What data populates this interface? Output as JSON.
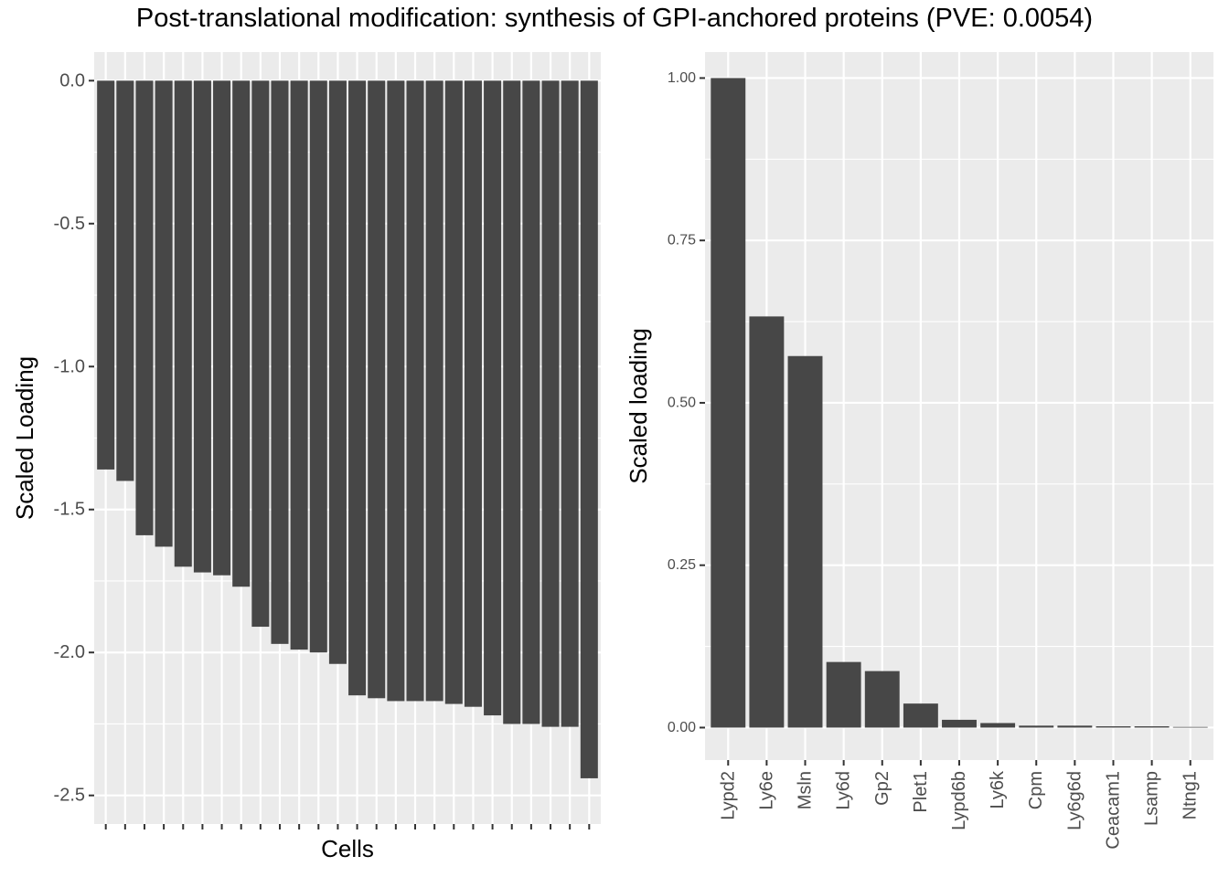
{
  "title": "Post-translational modification: synthesis of GPI-anchored proteins (PVE: 0.0054)",
  "chart_data": [
    {
      "type": "bar",
      "xlabel": "Cells",
      "ylabel": "Scaled Loading",
      "ylim": [
        -2.6,
        0.1
      ],
      "y_ticks": [
        0.0,
        -0.5,
        -1.0,
        -1.5,
        -2.0,
        -2.5
      ],
      "y_tick_labels": [
        "0.0",
        "-0.5",
        "-1.0",
        "-1.5",
        "-2.0",
        "-2.5"
      ],
      "grid": true,
      "values": [
        -1.36,
        -1.4,
        -1.59,
        -1.63,
        -1.7,
        -1.72,
        -1.73,
        -1.77,
        -1.91,
        -1.97,
        -1.99,
        -2.0,
        -2.04,
        -2.15,
        -2.16,
        -2.17,
        -2.17,
        -2.17,
        -2.18,
        -2.19,
        -2.22,
        -2.25,
        -2.25,
        -2.26,
        -2.26,
        -2.44
      ]
    },
    {
      "type": "bar",
      "xlabel": "",
      "ylabel": "Scaled loading",
      "ylim": [
        -0.05,
        1.04
      ],
      "y_ticks": [
        0.0,
        0.25,
        0.5,
        0.75,
        1.0
      ],
      "y_tick_labels": [
        "0.00",
        "0.25",
        "0.50",
        "0.75",
        "1.00"
      ],
      "grid": true,
      "categories": [
        "Lypd2",
        "Ly6e",
        "Msln",
        "Ly6d",
        "Gp2",
        "Plet1",
        "Lypd6b",
        "Ly6k",
        "Cpm",
        "Ly6g6d",
        "Ceacam1",
        "Lsamp",
        "Ntng1"
      ],
      "values": [
        1.0,
        0.633,
        0.572,
        0.101,
        0.087,
        0.037,
        0.012,
        0.007,
        0.003,
        0.003,
        0.002,
        0.002,
        0.001
      ]
    }
  ]
}
